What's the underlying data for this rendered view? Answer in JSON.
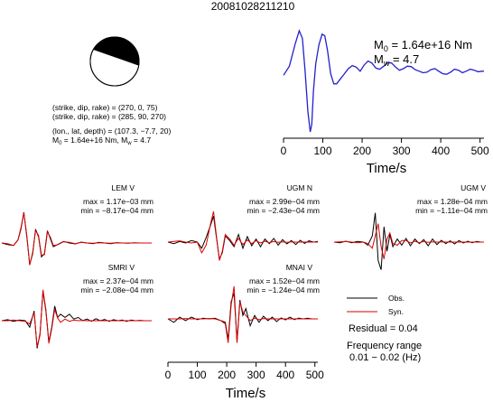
{
  "event_id": "20081028211210",
  "mechanism": {
    "line1": "(strike, dip, rake) = (270, 0, 75)",
    "line2": "(strike, dip, rake) = (285, 90, 270)",
    "line3": "(lon., lat, depth) = (107.3, −7.7, 20)",
    "line4_m0": "M",
    "line4_m0_sub": "0",
    "line4_m0_val": " = 1.64e+16 Nm, M",
    "line4_mw_sub": "w",
    "line4_mw_val": " = 4.7",
    "colors": {
      "compression": "#000000",
      "dilatation": "#ffffff"
    }
  },
  "stf": {
    "m0_label": "M",
    "m0_sub": "0",
    "m0_value": " = 1.64e+16 Nm",
    "mw_label": "M",
    "mw_sub": "w",
    "mw_value": " = 4.7"
  },
  "legend": {
    "obs": "Obs.",
    "syn": "Syn.",
    "residual": "Residual = 0.04",
    "freq_title": "Frequency range",
    "freq_value": "0.01 − 0.02 (Hz)",
    "colors": {
      "obs": "#000000",
      "syn": "#dd0000"
    }
  },
  "chart_data": [
    {
      "type": "line",
      "title": "",
      "xlabel": "Time/s",
      "ylabel": "",
      "xlim": [
        0,
        510
      ],
      "xticks": [
        "0",
        "100",
        "200",
        "300",
        "400",
        "500"
      ],
      "grid": false,
      "series": [
        {
          "color": "#2222cc",
          "x": [
            0,
            15,
            30,
            40,
            48,
            55,
            62,
            68,
            72,
            76,
            82,
            90,
            98,
            105,
            112,
            120,
            128,
            135,
            145,
            155,
            165,
            175,
            185,
            195,
            205,
            215,
            225,
            235,
            245,
            255,
            265,
            275,
            285,
            295,
            305,
            315,
            325,
            335,
            345,
            355,
            365,
            375,
            385,
            395,
            405,
            415,
            425,
            435,
            445,
            455,
            465,
            475,
            485,
            495,
            505,
            510
          ],
          "y": [
            0.12,
            0.3,
            0.75,
            1.0,
            0.85,
            0.2,
            -0.6,
            -1.0,
            -0.85,
            -0.2,
            0.35,
            0.72,
            0.93,
            0.9,
            0.6,
            0.15,
            -0.05,
            -0.05,
            0.05,
            0.15,
            0.25,
            0.31,
            0.28,
            0.2,
            0.32,
            0.4,
            0.36,
            0.26,
            0.24,
            0.3,
            0.37,
            0.36,
            0.28,
            0.22,
            0.25,
            0.3,
            0.29,
            0.23,
            0.2,
            0.17,
            0.18,
            0.23,
            0.25,
            0.2,
            0.15,
            0.14,
            0.18,
            0.24,
            0.22,
            0.17,
            0.2,
            0.24,
            0.22,
            0.19,
            0.2,
            0.2
          ]
        }
      ]
    },
    {
      "type": "line",
      "title": "LEM V",
      "annotations": [
        "max = 1.17e−03 mm",
        "min = −8.17e−04 mm"
      ],
      "series": [
        {
          "name": "Obs.",
          "color": "#000000",
          "x": [
            0,
            20,
            40,
            55,
            65,
            75,
            85,
            95,
            105,
            115,
            125,
            135,
            145,
            155,
            165,
            175,
            190,
            210,
            230,
            250,
            270,
            290,
            310,
            330,
            350,
            370,
            390,
            410,
            430,
            450,
            470,
            490,
            510
          ],
          "y": [
            0.0,
            -0.05,
            -0.08,
            0.1,
            0.45,
            1.0,
            0.2,
            -0.7,
            -0.35,
            0.45,
            0.2,
            -0.45,
            -0.35,
            0.4,
            0.15,
            -0.12,
            -0.05,
            0.05,
            0.0,
            -0.03,
            0.03,
            0.0,
            -0.02,
            0.02,
            0.0,
            -0.02,
            0.01,
            0.0,
            -0.01,
            0.01,
            0.0,
            0.0,
            0.0
          ]
        },
        {
          "name": "Syn.",
          "color": "#dd0000",
          "x": [
            0,
            20,
            40,
            55,
            65,
            75,
            85,
            95,
            105,
            115,
            125,
            135,
            145,
            155,
            165,
            175,
            190,
            210,
            230,
            250,
            270,
            290,
            310,
            330,
            350,
            370,
            390,
            410,
            430,
            450,
            470,
            490,
            510
          ],
          "y": [
            0.0,
            -0.02,
            -0.08,
            0.1,
            0.5,
            0.98,
            0.25,
            -0.72,
            -0.3,
            0.4,
            0.25,
            -0.4,
            -0.38,
            0.35,
            0.2,
            -0.08,
            -0.06,
            0.04,
            0.02,
            -0.02,
            0.02,
            0.0,
            -0.01,
            0.01,
            0.0,
            -0.01,
            0.01,
            0.0,
            0.0,
            0.0,
            0.0,
            0.0,
            0.0
          ]
        }
      ]
    },
    {
      "type": "line",
      "title": "UGM N",
      "annotations": [
        "max = 2.99e−04 mm",
        "min = −2.43e−04 mm"
      ],
      "series": [
        {
          "name": "Obs.",
          "color": "#000000",
          "x": [
            0,
            20,
            40,
            60,
            80,
            100,
            115,
            130,
            145,
            155,
            165,
            175,
            185,
            195,
            210,
            225,
            240,
            255,
            270,
            285,
            300,
            315,
            330,
            345,
            360,
            375,
            390,
            405,
            420,
            435,
            450,
            465,
            480,
            495,
            510
          ],
          "y": [
            0.0,
            -0.05,
            0.02,
            -0.03,
            0.05,
            0.0,
            -0.2,
            0.15,
            0.55,
            0.85,
            0.15,
            -0.55,
            -0.35,
            0.2,
            0.05,
            -0.15,
            0.25,
            -0.2,
            0.18,
            -0.12,
            0.1,
            -0.15,
            0.1,
            -0.05,
            0.12,
            -0.1,
            0.08,
            -0.06,
            0.05,
            -0.08,
            0.06,
            -0.04,
            0.04,
            0.0,
            0.02
          ]
        },
        {
          "name": "Syn.",
          "color": "#dd0000",
          "x": [
            0,
            20,
            40,
            60,
            80,
            100,
            115,
            130,
            145,
            155,
            165,
            175,
            185,
            195,
            210,
            225,
            240,
            255,
            270,
            285,
            300,
            315,
            330,
            345,
            360,
            375,
            390,
            405,
            420,
            435,
            450,
            465,
            480,
            495,
            510
          ],
          "y": [
            0.0,
            0.02,
            0.04,
            0.0,
            -0.03,
            0.0,
            -0.35,
            -0.1,
            0.6,
            1.0,
            0.2,
            -0.6,
            -0.3,
            0.25,
            0.1,
            -0.1,
            0.12,
            -0.08,
            0.07,
            -0.05,
            0.05,
            -0.03,
            0.03,
            -0.02,
            0.02,
            -0.01,
            0.01,
            -0.01,
            0.01,
            0.0,
            0.0,
            0.0,
            0.0,
            0.0,
            0.0
          ]
        }
      ]
    },
    {
      "type": "line",
      "title": "UGM V",
      "annotations": [
        "max = 1.28e−04 mm",
        "min = −1.11e−04 mm"
      ],
      "series": [
        {
          "name": "Obs.",
          "color": "#000000",
          "x": [
            0,
            20,
            40,
            60,
            80,
            100,
            115,
            130,
            140,
            150,
            160,
            170,
            180,
            190,
            200,
            215,
            230,
            245,
            260,
            275,
            290,
            305,
            320,
            335,
            350,
            365,
            380,
            395,
            410,
            425,
            440,
            455,
            470,
            485,
            500,
            510
          ],
          "y": [
            0.0,
            -0.02,
            0.03,
            -0.02,
            0.02,
            0.0,
            -0.1,
            0.2,
            0.95,
            -0.6,
            -0.9,
            0.5,
            -0.3,
            0.25,
            -0.15,
            0.1,
            -0.1,
            0.12,
            -0.12,
            0.1,
            -0.05,
            0.08,
            -0.12,
            0.1,
            -0.08,
            0.06,
            -0.05,
            0.04,
            -0.06,
            0.05,
            -0.03,
            0.03,
            -0.02,
            0.02,
            0.0,
            0.0
          ]
        },
        {
          "name": "Syn.",
          "color": "#dd0000",
          "x": [
            0,
            20,
            40,
            60,
            80,
            100,
            115,
            130,
            140,
            150,
            160,
            170,
            180,
            190,
            200,
            215,
            230,
            245,
            260,
            275,
            290,
            305,
            320,
            335,
            350,
            365,
            380,
            395,
            410,
            425,
            440,
            455,
            470,
            485,
            500,
            510
          ],
          "y": [
            0.0,
            0.01,
            0.02,
            0.0,
            -0.02,
            0.0,
            -0.05,
            -0.2,
            0.2,
            0.6,
            -0.15,
            -0.55,
            0.1,
            0.3,
            -0.05,
            -0.1,
            0.05,
            0.05,
            -0.03,
            0.03,
            -0.02,
            0.02,
            -0.01,
            0.01,
            0.0,
            0.01,
            0.0,
            0.0,
            0.0,
            0.0,
            0.0,
            0.0,
            0.0,
            0.0,
            0.0,
            0.0
          ]
        }
      ]
    },
    {
      "type": "line",
      "title": "SMRI V",
      "annotations": [
        "max = 2.37e−04 mm",
        "min = −2.08e−04 mm"
      ],
      "series": [
        {
          "name": "Obs.",
          "color": "#000000",
          "x": [
            0,
            20,
            40,
            60,
            80,
            95,
            110,
            120,
            130,
            140,
            150,
            160,
            170,
            180,
            190,
            200,
            215,
            230,
            245,
            260,
            275,
            290,
            305,
            320,
            335,
            350,
            365,
            380,
            395,
            410,
            425,
            440,
            455,
            470,
            485,
            500,
            510
          ],
          "y": [
            0.0,
            0.03,
            -0.02,
            0.02,
            0.0,
            -0.2,
            0.3,
            -0.85,
            -0.4,
            0.9,
            0.3,
            -0.65,
            -0.2,
            0.45,
            0.1,
            0.2,
            0.1,
            0.2,
            0.05,
            0.1,
            0.0,
            0.05,
            -0.02,
            0.06,
            0.0,
            0.04,
            -0.02,
            0.03,
            0.0,
            0.02,
            -0.02,
            0.02,
            0.0,
            0.01,
            0.0,
            0.0,
            0.0
          ]
        },
        {
          "name": "Syn.",
          "color": "#dd0000",
          "x": [
            0,
            20,
            40,
            60,
            80,
            95,
            110,
            120,
            130,
            140,
            150,
            160,
            170,
            180,
            190,
            200,
            215,
            230,
            245,
            260,
            275,
            290,
            305,
            320,
            335,
            350,
            365,
            380,
            395,
            410,
            425,
            440,
            455,
            470,
            485,
            500,
            510
          ],
          "y": [
            0.0,
            0.0,
            0.02,
            0.0,
            -0.02,
            -0.1,
            0.25,
            -0.8,
            -0.45,
            0.95,
            0.35,
            -0.7,
            -0.25,
            0.35,
            0.08,
            -0.05,
            0.05,
            -0.02,
            0.02,
            0.0,
            0.01,
            0.0,
            0.0,
            0.0,
            0.0,
            0.0,
            0.0,
            0.0,
            0.0,
            0.0,
            0.0,
            0.0,
            0.0,
            0.0,
            0.0,
            0.0,
            0.0
          ]
        }
      ]
    },
    {
      "type": "line",
      "title": "MNAI V",
      "xlabel": "Time/s",
      "xlim": [
        0,
        510
      ],
      "xticks": [
        "0",
        "100",
        "200",
        "300",
        "400",
        "500"
      ],
      "annotations": [
        "max = 1.52e−04 mm",
        "min = −1.24e−04 mm"
      ],
      "series": [
        {
          "name": "Obs.",
          "color": "#000000",
          "x": [
            0,
            20,
            40,
            60,
            80,
            100,
            120,
            140,
            160,
            180,
            195,
            205,
            215,
            225,
            235,
            245,
            255,
            265,
            280,
            295,
            310,
            325,
            340,
            355,
            370,
            385,
            400,
            415,
            430,
            445,
            460,
            475,
            490,
            505,
            510
          ],
          "y": [
            0.0,
            -0.1,
            0.05,
            -0.05,
            0.05,
            -0.02,
            0.02,
            0.0,
            0.02,
            -0.05,
            -0.1,
            -0.6,
            0.5,
            0.75,
            -0.65,
            0.55,
            0.1,
            0.3,
            -0.2,
            0.1,
            -0.1,
            0.08,
            -0.05,
            0.05,
            -0.08,
            0.03,
            -0.03,
            0.05,
            -0.02,
            0.02,
            0.0,
            0.02,
            0.0,
            0.0,
            0.0
          ]
        },
        {
          "name": "Syn.",
          "color": "#dd0000",
          "x": [
            0,
            20,
            40,
            60,
            80,
            100,
            120,
            140,
            160,
            180,
            195,
            205,
            215,
            225,
            235,
            245,
            255,
            265,
            280,
            295,
            310,
            325,
            340,
            355,
            370,
            385,
            400,
            415,
            430,
            445,
            460,
            475,
            490,
            505,
            510
          ],
          "y": [
            0.0,
            0.0,
            0.0,
            0.01,
            0.0,
            0.0,
            0.0,
            0.01,
            0.0,
            -0.05,
            -0.15,
            -0.7,
            0.4,
            0.95,
            -0.7,
            0.5,
            0.2,
            0.1,
            -0.05,
            0.02,
            -0.02,
            0.01,
            0.0,
            0.0,
            0.0,
            0.0,
            0.0,
            0.0,
            0.0,
            0.0,
            0.0,
            0.0,
            0.0,
            0.0,
            0.0
          ]
        }
      ]
    }
  ]
}
